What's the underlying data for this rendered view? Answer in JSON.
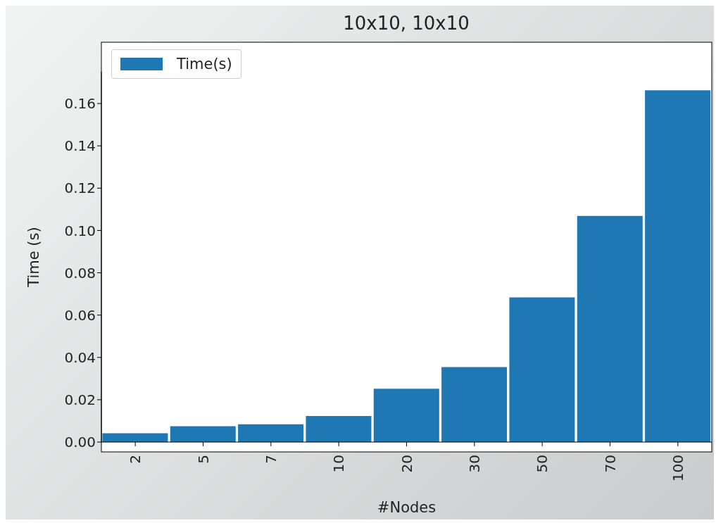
{
  "chart_data": {
    "type": "bar",
    "title": "10x10, 10x10",
    "xlabel": "#Nodes",
    "ylabel": "Time (s)",
    "categories": [
      "2",
      "5",
      "7",
      "10",
      "20",
      "30",
      "50",
      "70",
      "100"
    ],
    "series": [
      {
        "name": "Time(s)",
        "color": "#1f77b4",
        "values": [
          0.0042,
          0.0075,
          0.0084,
          0.0123,
          0.0252,
          0.0354,
          0.0684,
          0.1069,
          0.1663
        ]
      }
    ],
    "ylim": [
      0,
      0.175
    ],
    "yticks": [
      {
        "value": 0,
        "label": "0.00"
      },
      0.02,
      0.04,
      0.06,
      0.08,
      {
        "value": 0.1,
        "label": "0.10"
      },
      0.12,
      0.14,
      0.16
    ],
    "legend": "top left"
  }
}
